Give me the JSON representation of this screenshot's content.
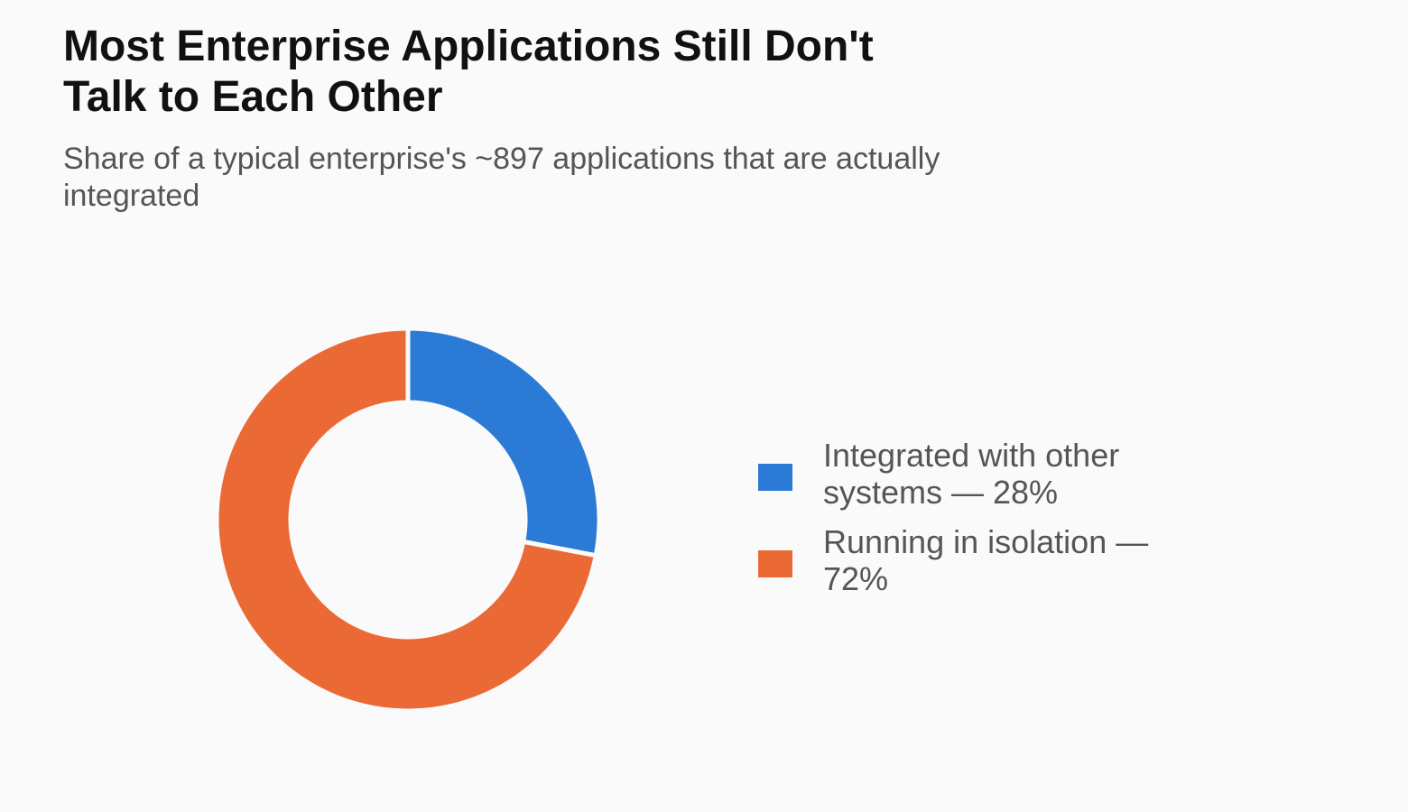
{
  "chart_data": {
    "type": "pie",
    "title": "Most Enterprise Applications Still Don't Talk to Each Other",
    "subtitle": "Share of a typical enterprise's ~897 applications that are actually integrated",
    "categories": [
      "Integrated with other systems",
      "Running in isolation"
    ],
    "values": [
      28,
      72
    ],
    "unit": "%",
    "colors": [
      "#2b7ad6",
      "#ea6935"
    ],
    "legend": [
      "Integrated with other systems — 28%",
      "Running in isolation — 72%"
    ],
    "legend_position": "right",
    "donut": true
  }
}
